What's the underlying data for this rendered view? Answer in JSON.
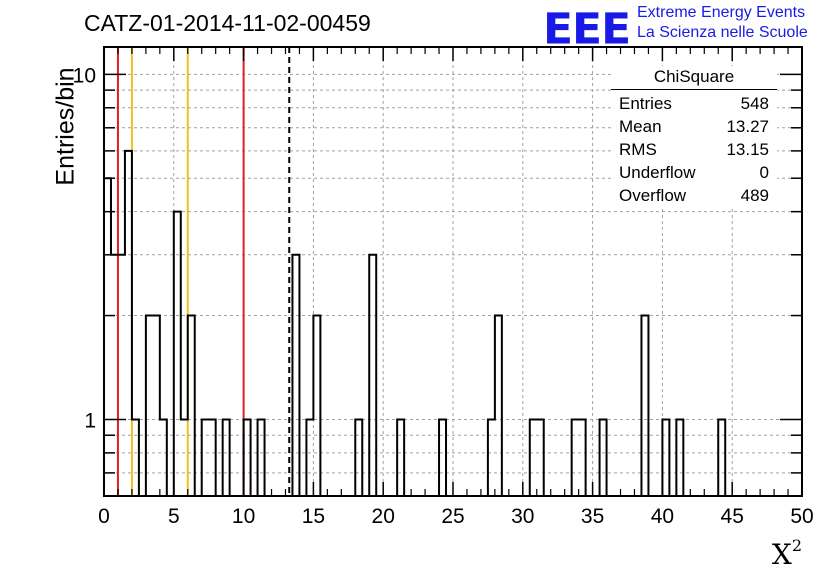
{
  "header": {
    "title": "CATZ-01-2014-11-02-00459",
    "logo_mark": "EEE",
    "logo_line1": "Extreme Energy Events",
    "logo_line2": "La Scienza nelle Scuole"
  },
  "stats_box": {
    "title": "ChiSquare",
    "rows": [
      {
        "label": "Entries",
        "value": "548"
      },
      {
        "label": "Mean",
        "value": "13.27"
      },
      {
        "label": "RMS",
        "value": "13.15"
      },
      {
        "label": "Underflow",
        "value": "0"
      },
      {
        "label": "Overflow",
        "value": "489"
      }
    ]
  },
  "chart_data": {
    "type": "bar",
    "style": "step-histogram",
    "title": "CATZ-01-2014-11-02-00459",
    "xlabel": "X",
    "xlabel_superscript": "2",
    "ylabel": "Entries/bin",
    "xlim": [
      0,
      50
    ],
    "ylim": [
      0.6,
      12
    ],
    "yscale": "log",
    "grid": true,
    "bin_width": 0.5,
    "x_ticks": [
      "0",
      "5",
      "10",
      "15",
      "20",
      "25",
      "30",
      "35",
      "40",
      "45",
      "50"
    ],
    "y_ticks": [
      "1",
      "10"
    ],
    "bins": [
      {
        "x": 0.0,
        "v": 5
      },
      {
        "x": 0.5,
        "v": 3
      },
      {
        "x": 1.0,
        "v": 3
      },
      {
        "x": 1.5,
        "v": 6
      },
      {
        "x": 2.0,
        "v": 1
      },
      {
        "x": 3.0,
        "v": 2
      },
      {
        "x": 3.5,
        "v": 2
      },
      {
        "x": 4.0,
        "v": 1
      },
      {
        "x": 5.0,
        "v": 4
      },
      {
        "x": 5.5,
        "v": 1
      },
      {
        "x": 6.0,
        "v": 2
      },
      {
        "x": 7.0,
        "v": 1
      },
      {
        "x": 7.5,
        "v": 1
      },
      {
        "x": 8.5,
        "v": 1
      },
      {
        "x": 10.0,
        "v": 1
      },
      {
        "x": 11.0,
        "v": 1
      },
      {
        "x": 13.5,
        "v": 3
      },
      {
        "x": 14.5,
        "v": 1
      },
      {
        "x": 15.0,
        "v": 2
      },
      {
        "x": 18.0,
        "v": 1
      },
      {
        "x": 19.0,
        "v": 3
      },
      {
        "x": 21.0,
        "v": 1
      },
      {
        "x": 24.0,
        "v": 1
      },
      {
        "x": 27.5,
        "v": 1
      },
      {
        "x": 28.0,
        "v": 2
      },
      {
        "x": 30.5,
        "v": 1
      },
      {
        "x": 31.0,
        "v": 1
      },
      {
        "x": 33.5,
        "v": 1
      },
      {
        "x": 34.0,
        "v": 1
      },
      {
        "x": 35.5,
        "v": 1
      },
      {
        "x": 38.5,
        "v": 2
      },
      {
        "x": 40.0,
        "v": 1
      },
      {
        "x": 41.0,
        "v": 1
      },
      {
        "x": 44.0,
        "v": 1
      }
    ],
    "vertical_lines": [
      {
        "x": 1.0,
        "color": "#e02020",
        "style": "solid"
      },
      {
        "x": 2.0,
        "color": "#f0c020",
        "style": "solid"
      },
      {
        "x": 6.0,
        "color": "#f0c020",
        "style": "solid"
      },
      {
        "x": 10.0,
        "color": "#e02020",
        "style": "solid"
      },
      {
        "x": 13.27,
        "color": "#000000",
        "style": "dashed"
      }
    ],
    "colors": {
      "histogram": "#000000",
      "grid": "#a0a0a0",
      "logo": "#1a1ae6"
    }
  }
}
